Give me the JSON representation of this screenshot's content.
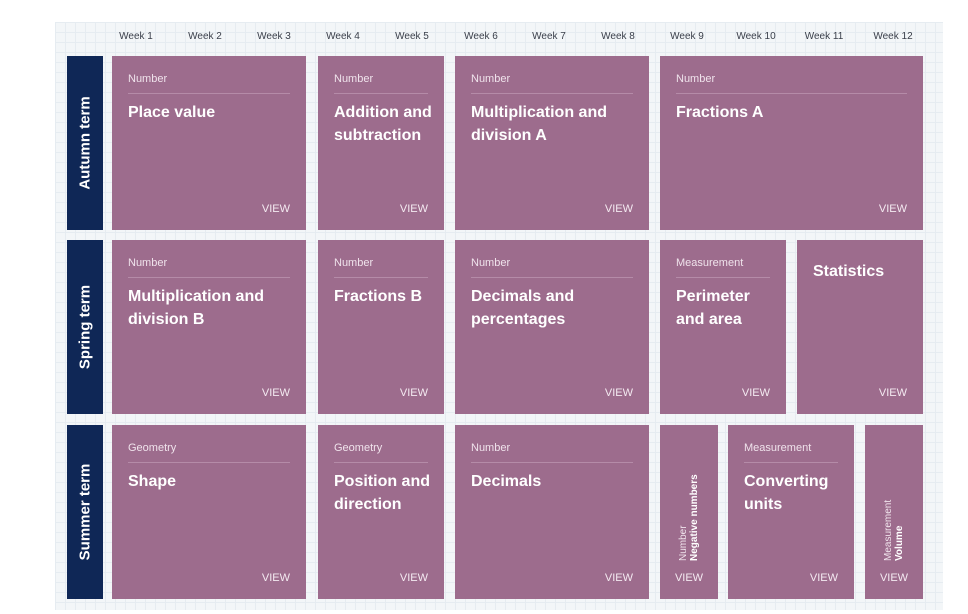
{
  "weeks": [
    "Week 1",
    "Week 2",
    "Week 3",
    "Week 4",
    "Week 5",
    "Week 6",
    "Week 7",
    "Week 8",
    "Week 9",
    "Week 10",
    "Week 11",
    "Week 12"
  ],
  "terms": {
    "autumn": "Autumn term",
    "spring": "Spring term",
    "summer": "Summer term"
  },
  "view_label": "VIEW",
  "cards": {
    "place_value": {
      "category": "Number",
      "title": "Place value"
    },
    "addition_subtraction": {
      "category": "Number",
      "title": "Addition and subtraction"
    },
    "mult_div_a": {
      "category": "Number",
      "title": "Multiplication and division A"
    },
    "fractions_a": {
      "category": "Number",
      "title": "Fractions A"
    },
    "mult_div_b": {
      "category": "Number",
      "title": "Multiplication and division B"
    },
    "fractions_b": {
      "category": "Number",
      "title": "Fractions B"
    },
    "decimals_percentages": {
      "category": "Number",
      "title": "Decimals and percentages"
    },
    "perimeter_area": {
      "category": "Measurement",
      "title": "Perimeter and area"
    },
    "statistics": {
      "title": "Statistics"
    },
    "shape": {
      "category": "Geometry",
      "title": "Shape"
    },
    "position_direction": {
      "category": "Geometry",
      "title": "Position and direction"
    },
    "decimals": {
      "category": "Number",
      "title": "Decimals"
    },
    "negative_numbers": {
      "category": "Number",
      "title": "Negative numbers"
    },
    "converting_units": {
      "category": "Measurement",
      "title": "Converting units"
    },
    "volume": {
      "category": "Measurement",
      "title": "Volume"
    }
  },
  "colors": {
    "card": "#9d6c8d",
    "term_label": "#0f2756",
    "background": "#f3f6f8"
  }
}
